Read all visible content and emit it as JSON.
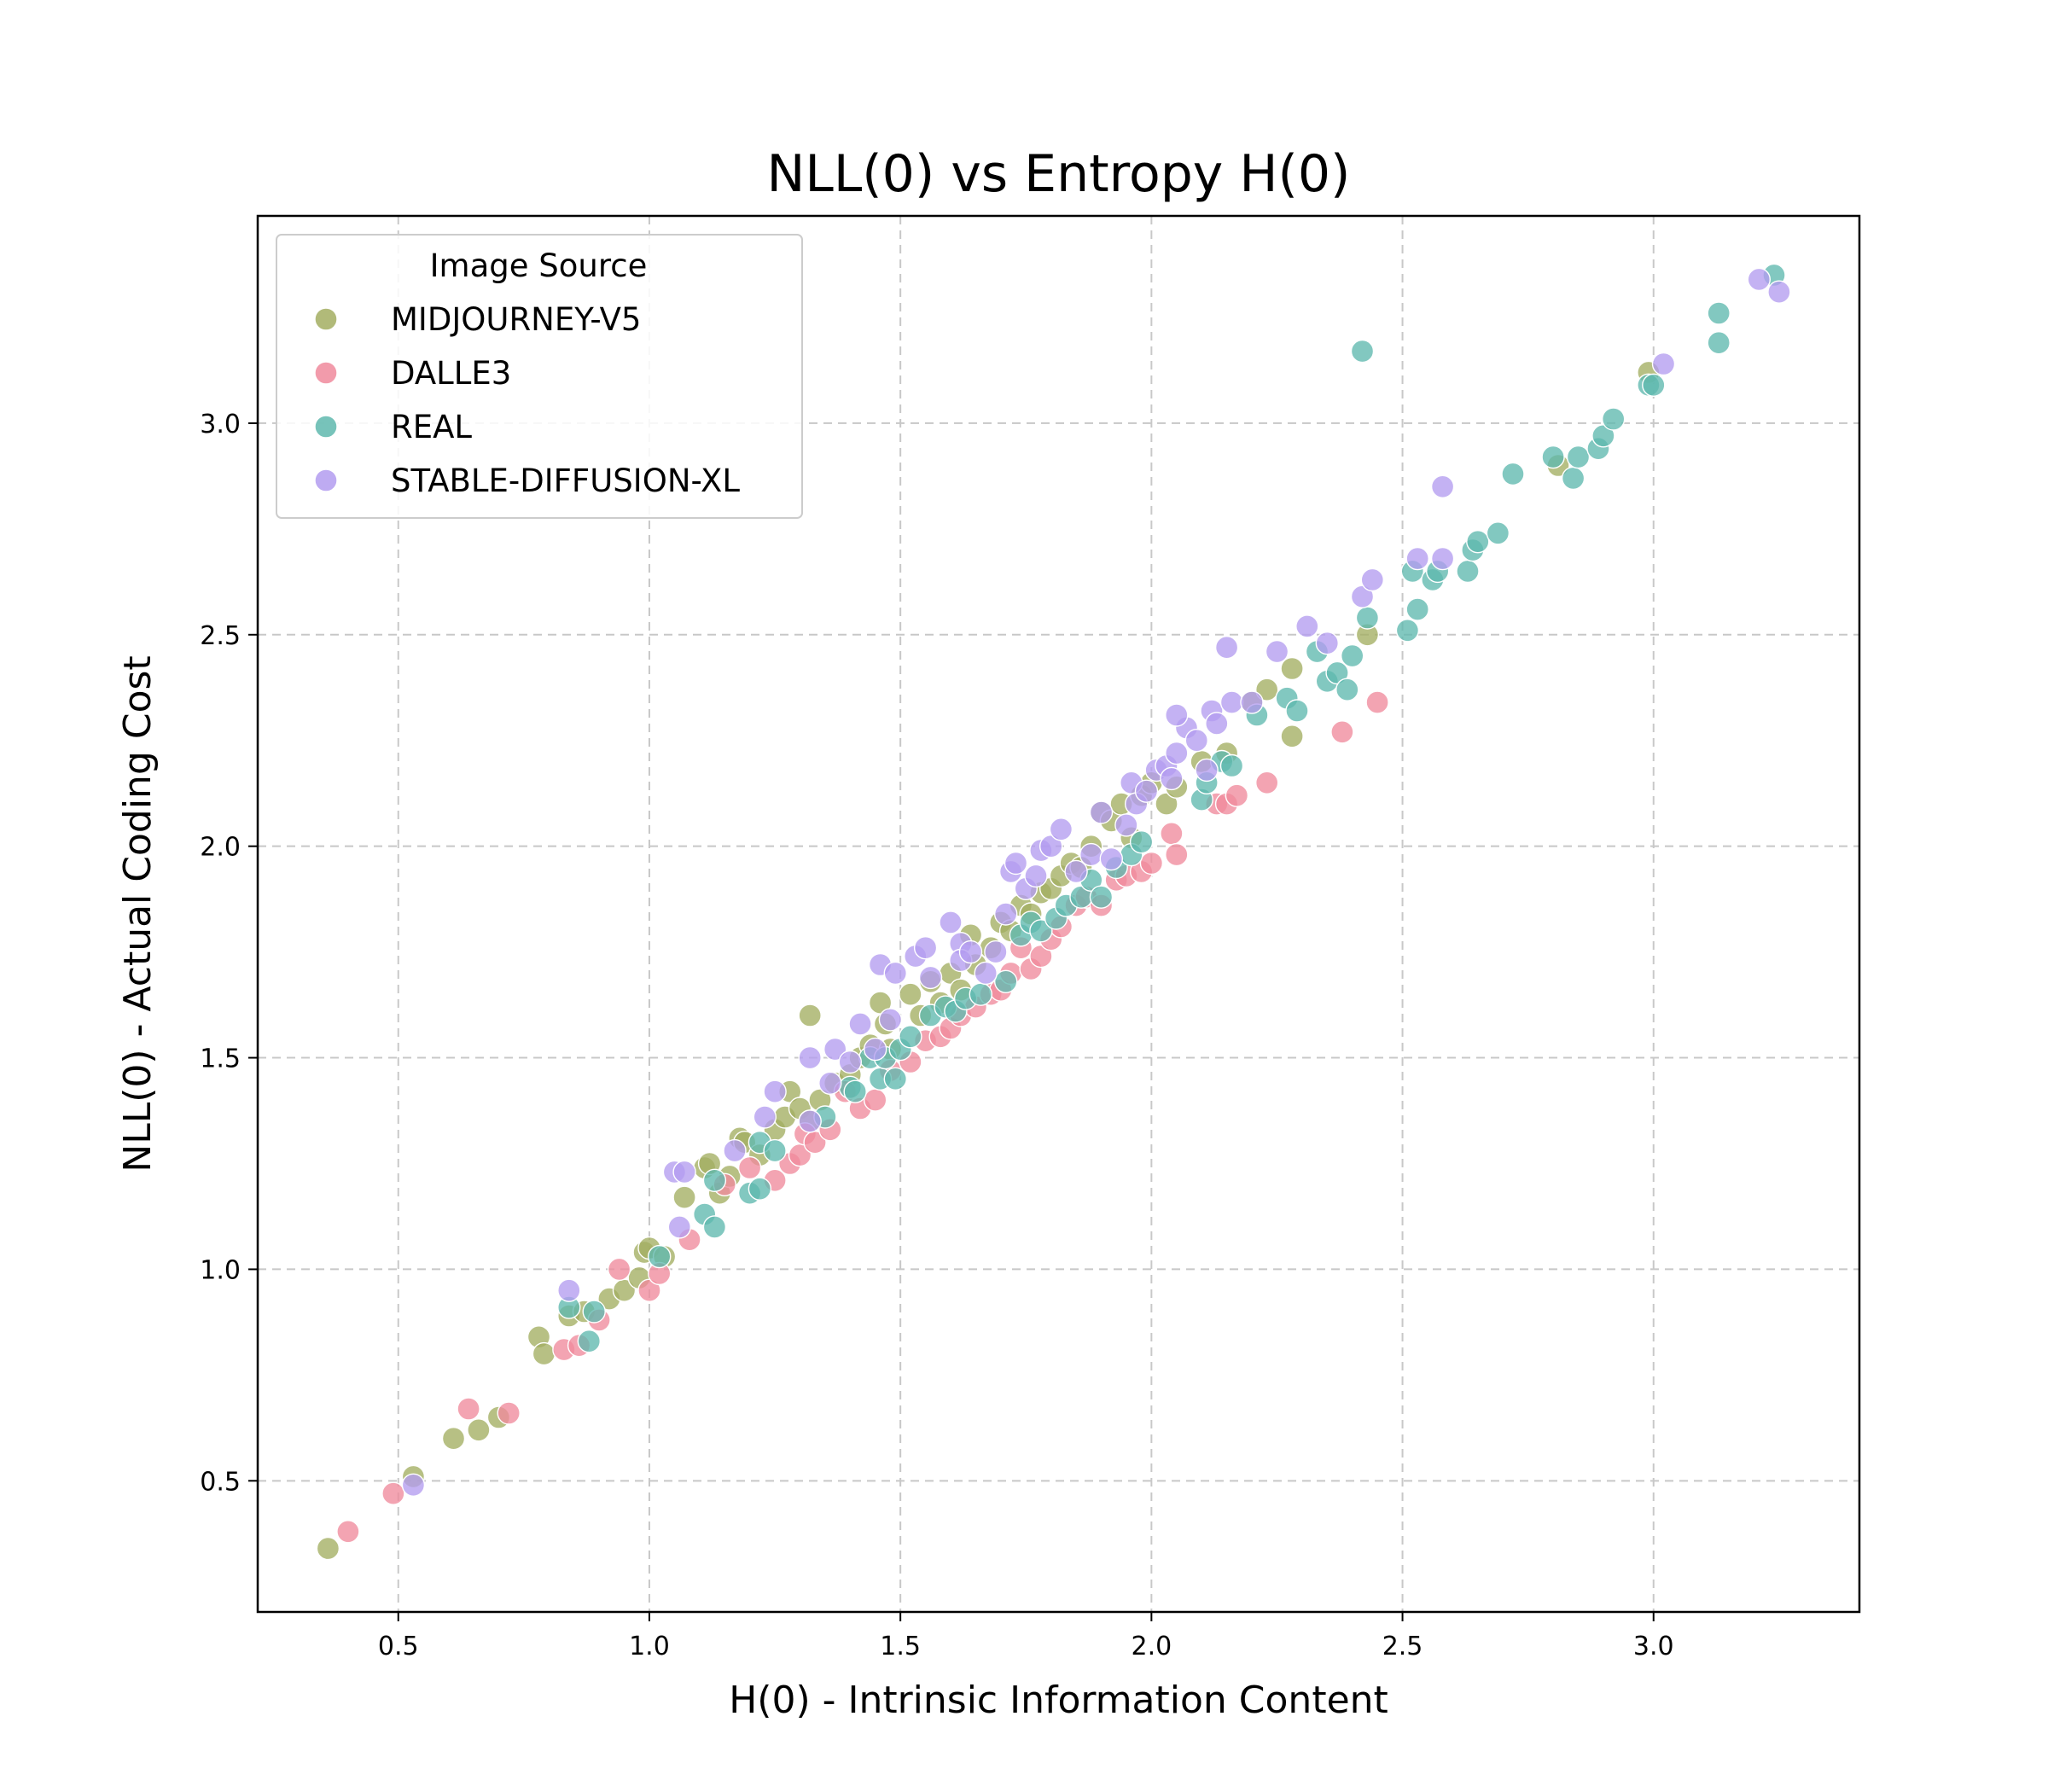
{
  "chart_data": {
    "type": "scatter",
    "title": "NLL(0) vs Entropy H(0)",
    "xlabel": "H(0) - Intrinsic Information Content",
    "ylabel": "NLL(0) - Actual Coding Cost",
    "xlim": [
      0.22,
      3.41
    ],
    "ylim": [
      0.19,
      3.49
    ],
    "xticks": [
      0.5,
      1.0,
      1.5,
      2.0,
      2.5,
      3.0
    ],
    "yticks": [
      0.5,
      1.0,
      1.5,
      2.0,
      2.5,
      3.0
    ],
    "xtick_labels": [
      "0.5",
      "1.0",
      "1.5",
      "2.0",
      "2.5",
      "3.0"
    ],
    "ytick_labels": [
      "0.5",
      "1.0",
      "1.5",
      "2.0",
      "2.5",
      "3.0"
    ],
    "grid": true,
    "legend": {
      "title": "Image Source",
      "placement": "upper left"
    },
    "series": [
      {
        "name": "MIDJOURNEY-V5",
        "color": "#a3ae62",
        "points": [
          [
            0.36,
            0.34
          ],
          [
            0.53,
            0.51
          ],
          [
            0.61,
            0.6
          ],
          [
            0.66,
            0.62
          ],
          [
            0.7,
            0.65
          ],
          [
            0.78,
            0.84
          ],
          [
            0.79,
            0.8
          ],
          [
            0.84,
            0.89
          ],
          [
            0.87,
            0.9
          ],
          [
            0.92,
            0.93
          ],
          [
            0.95,
            0.95
          ],
          [
            0.98,
            0.98
          ],
          [
            0.99,
            1.04
          ],
          [
            1.0,
            1.05
          ],
          [
            1.03,
            1.03
          ],
          [
            1.07,
            1.17
          ],
          [
            1.11,
            1.24
          ],
          [
            1.12,
            1.25
          ],
          [
            1.14,
            1.18
          ],
          [
            1.16,
            1.22
          ],
          [
            1.18,
            1.31
          ],
          [
            1.19,
            1.3
          ],
          [
            1.22,
            1.27
          ],
          [
            1.25,
            1.33
          ],
          [
            1.27,
            1.36
          ],
          [
            1.28,
            1.42
          ],
          [
            1.3,
            1.38
          ],
          [
            1.32,
            1.6
          ],
          [
            1.32,
            1.35
          ],
          [
            1.34,
            1.4
          ],
          [
            1.37,
            1.44
          ],
          [
            1.4,
            1.46
          ],
          [
            1.42,
            1.5
          ],
          [
            1.44,
            1.53
          ],
          [
            1.46,
            1.63
          ],
          [
            1.47,
            1.58
          ],
          [
            1.48,
            1.52
          ],
          [
            1.52,
            1.65
          ],
          [
            1.54,
            1.6
          ],
          [
            1.56,
            1.68
          ],
          [
            1.58,
            1.63
          ],
          [
            1.6,
            1.7
          ],
          [
            1.62,
            1.66
          ],
          [
            1.64,
            1.79
          ],
          [
            1.65,
            1.72
          ],
          [
            1.68,
            1.76
          ],
          [
            1.7,
            1.82
          ],
          [
            1.72,
            1.8
          ],
          [
            1.74,
            1.86
          ],
          [
            1.76,
            1.84
          ],
          [
            1.78,
            1.89
          ],
          [
            1.8,
            1.9
          ],
          [
            1.82,
            1.93
          ],
          [
            1.84,
            1.96
          ],
          [
            1.86,
            1.95
          ],
          [
            1.88,
            2.0
          ],
          [
            1.9,
            2.08
          ],
          [
            1.92,
            2.06
          ],
          [
            1.94,
            2.1
          ],
          [
            1.96,
            2.02
          ],
          [
            1.98,
            2.12
          ],
          [
            2.0,
            2.15
          ],
          [
            2.03,
            2.1
          ],
          [
            2.05,
            2.14
          ],
          [
            2.1,
            2.2
          ],
          [
            2.15,
            2.22
          ],
          [
            2.2,
            2.34
          ],
          [
            2.23,
            2.37
          ],
          [
            2.28,
            2.42
          ],
          [
            2.28,
            2.26
          ],
          [
            2.43,
            2.5
          ],
          [
            2.81,
            2.9
          ],
          [
            2.99,
            3.12
          ]
        ]
      },
      {
        "name": "DALLE3",
        "color": "#f08a9c",
        "points": [
          [
            0.4,
            0.38
          ],
          [
            0.49,
            0.47
          ],
          [
            0.64,
            0.67
          ],
          [
            0.72,
            0.66
          ],
          [
            0.83,
            0.81
          ],
          [
            0.86,
            0.82
          ],
          [
            0.9,
            0.88
          ],
          [
            0.94,
            1.0
          ],
          [
            1.0,
            0.95
          ],
          [
            1.02,
            0.99
          ],
          [
            1.08,
            1.07
          ],
          [
            1.15,
            1.2
          ],
          [
            1.2,
            1.24
          ],
          [
            1.25,
            1.21
          ],
          [
            1.28,
            1.25
          ],
          [
            1.3,
            1.27
          ],
          [
            1.31,
            1.32
          ],
          [
            1.33,
            1.3
          ],
          [
            1.36,
            1.33
          ],
          [
            1.39,
            1.42
          ],
          [
            1.42,
            1.38
          ],
          [
            1.45,
            1.4
          ],
          [
            1.48,
            1.47
          ],
          [
            1.52,
            1.49
          ],
          [
            1.55,
            1.54
          ],
          [
            1.58,
            1.55
          ],
          [
            1.6,
            1.57
          ],
          [
            1.62,
            1.6
          ],
          [
            1.65,
            1.62
          ],
          [
            1.68,
            1.65
          ],
          [
            1.7,
            1.66
          ],
          [
            1.72,
            1.7
          ],
          [
            1.74,
            1.76
          ],
          [
            1.76,
            1.71
          ],
          [
            1.78,
            1.74
          ],
          [
            1.8,
            1.78
          ],
          [
            1.82,
            1.81
          ],
          [
            1.85,
            1.86
          ],
          [
            1.87,
            1.88
          ],
          [
            1.9,
            1.86
          ],
          [
            1.93,
            1.92
          ],
          [
            1.95,
            1.93
          ],
          [
            1.98,
            1.94
          ],
          [
            2.0,
            1.96
          ],
          [
            2.04,
            2.03
          ],
          [
            2.05,
            1.98
          ],
          [
            2.13,
            2.1
          ],
          [
            2.15,
            2.1
          ],
          [
            2.17,
            2.12
          ],
          [
            2.23,
            2.15
          ],
          [
            2.38,
            2.27
          ],
          [
            2.45,
            2.34
          ]
        ]
      },
      {
        "name": "REAL",
        "color": "#5fb8ae",
        "points": [
          [
            0.84,
            0.91
          ],
          [
            0.88,
            0.83
          ],
          [
            0.89,
            0.9
          ],
          [
            1.02,
            1.03
          ],
          [
            1.11,
            1.13
          ],
          [
            1.13,
            1.1
          ],
          [
            1.13,
            1.21
          ],
          [
            1.2,
            1.18
          ],
          [
            1.22,
            1.19
          ],
          [
            1.22,
            1.3
          ],
          [
            1.25,
            1.28
          ],
          [
            1.35,
            1.36
          ],
          [
            1.4,
            1.43
          ],
          [
            1.41,
            1.42
          ],
          [
            1.44,
            1.5
          ],
          [
            1.46,
            1.45
          ],
          [
            1.47,
            1.5
          ],
          [
            1.49,
            1.45
          ],
          [
            1.5,
            1.52
          ],
          [
            1.52,
            1.55
          ],
          [
            1.56,
            1.6
          ],
          [
            1.59,
            1.62
          ],
          [
            1.61,
            1.61
          ],
          [
            1.63,
            1.64
          ],
          [
            1.66,
            1.65
          ],
          [
            1.71,
            1.68
          ],
          [
            1.74,
            1.79
          ],
          [
            1.76,
            1.82
          ],
          [
            1.78,
            1.8
          ],
          [
            1.81,
            1.83
          ],
          [
            1.83,
            1.86
          ],
          [
            1.86,
            1.88
          ],
          [
            1.88,
            1.92
          ],
          [
            1.9,
            1.88
          ],
          [
            1.93,
            1.95
          ],
          [
            1.96,
            1.98
          ],
          [
            1.98,
            2.01
          ],
          [
            2.1,
            2.11
          ],
          [
            2.11,
            2.15
          ],
          [
            2.14,
            2.2
          ],
          [
            2.16,
            2.19
          ],
          [
            2.21,
            2.31
          ],
          [
            2.27,
            2.35
          ],
          [
            2.29,
            2.32
          ],
          [
            2.33,
            2.46
          ],
          [
            2.35,
            2.39
          ],
          [
            2.37,
            2.41
          ],
          [
            2.39,
            2.37
          ],
          [
            2.4,
            2.45
          ],
          [
            2.42,
            3.17
          ],
          [
            2.43,
            2.54
          ],
          [
            2.51,
            2.51
          ],
          [
            2.52,
            2.65
          ],
          [
            2.53,
            2.56
          ],
          [
            2.56,
            2.63
          ],
          [
            2.57,
            2.65
          ],
          [
            2.63,
            2.65
          ],
          [
            2.64,
            2.7
          ],
          [
            2.65,
            2.72
          ],
          [
            2.69,
            2.74
          ],
          [
            2.72,
            2.88
          ],
          [
            2.8,
            2.92
          ],
          [
            2.84,
            2.87
          ],
          [
            2.85,
            2.92
          ],
          [
            2.89,
            2.94
          ],
          [
            2.9,
            2.97
          ],
          [
            2.92,
            3.01
          ],
          [
            2.99,
            3.09
          ],
          [
            3.0,
            3.09
          ],
          [
            3.13,
            3.19
          ],
          [
            3.13,
            3.26
          ],
          [
            3.24,
            3.35
          ]
        ]
      },
      {
        "name": "STABLE-DIFFUSION-XL",
        "color": "#b39cf0",
        "points": [
          [
            0.53,
            0.49
          ],
          [
            0.84,
            0.95
          ],
          [
            1.05,
            1.23
          ],
          [
            1.06,
            1.1
          ],
          [
            1.07,
            1.23
          ],
          [
            1.17,
            1.28
          ],
          [
            1.23,
            1.36
          ],
          [
            1.25,
            1.42
          ],
          [
            1.32,
            1.35
          ],
          [
            1.32,
            1.5
          ],
          [
            1.36,
            1.44
          ],
          [
            1.37,
            1.52
          ],
          [
            1.4,
            1.49
          ],
          [
            1.42,
            1.58
          ],
          [
            1.45,
            1.52
          ],
          [
            1.46,
            1.72
          ],
          [
            1.48,
            1.59
          ],
          [
            1.49,
            1.7
          ],
          [
            1.53,
            1.74
          ],
          [
            1.55,
            1.76
          ],
          [
            1.56,
            1.69
          ],
          [
            1.6,
            1.82
          ],
          [
            1.62,
            1.77
          ],
          [
            1.62,
            1.73
          ],
          [
            1.64,
            1.75
          ],
          [
            1.67,
            1.7
          ],
          [
            1.69,
            1.75
          ],
          [
            1.71,
            1.84
          ],
          [
            1.72,
            1.94
          ],
          [
            1.73,
            1.96
          ],
          [
            1.75,
            1.9
          ],
          [
            1.77,
            1.93
          ],
          [
            1.78,
            1.99
          ],
          [
            1.8,
            2.0
          ],
          [
            1.82,
            2.04
          ],
          [
            1.85,
            1.94
          ],
          [
            1.88,
            1.98
          ],
          [
            1.9,
            2.08
          ],
          [
            1.92,
            1.97
          ],
          [
            1.95,
            2.05
          ],
          [
            1.96,
            2.15
          ],
          [
            1.97,
            2.1
          ],
          [
            1.99,
            2.13
          ],
          [
            2.01,
            2.18
          ],
          [
            2.03,
            2.19
          ],
          [
            2.04,
            2.16
          ],
          [
            2.05,
            2.22
          ],
          [
            2.07,
            2.28
          ],
          [
            2.05,
            2.31
          ],
          [
            2.09,
            2.25
          ],
          [
            2.11,
            2.18
          ],
          [
            2.12,
            2.32
          ],
          [
            2.13,
            2.29
          ],
          [
            2.15,
            2.47
          ],
          [
            2.16,
            2.34
          ],
          [
            2.2,
            2.34
          ],
          [
            2.25,
            2.46
          ],
          [
            2.31,
            2.52
          ],
          [
            2.35,
            2.48
          ],
          [
            2.42,
            2.59
          ],
          [
            2.44,
            2.63
          ],
          [
            2.53,
            2.68
          ],
          [
            2.58,
            2.68
          ],
          [
            2.58,
            2.85
          ],
          [
            3.02,
            3.14
          ],
          [
            3.21,
            3.34
          ],
          [
            3.25,
            3.31
          ]
        ]
      }
    ]
  }
}
